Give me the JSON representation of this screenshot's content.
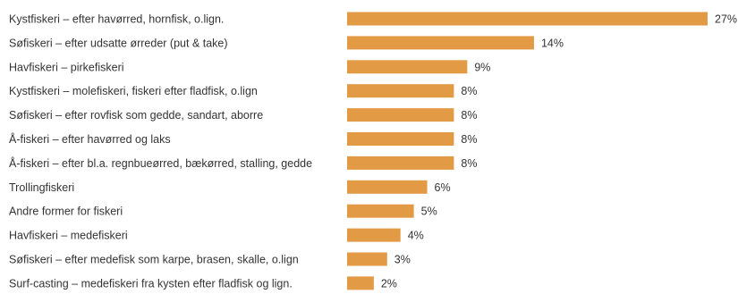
{
  "chart_data": {
    "type": "bar",
    "orientation": "horizontal",
    "categories": [
      "Kystfiskeri – efter havørred, hornfisk, o.lign.",
      "Søfiskeri – efter udsatte ørreder (put & take)",
      "Havfiskeri – pirkefiskeri",
      "Kystfiskeri – molefiskeri, fiskeri efter fladfisk, o.lign",
      "Søfiskeri – efter rovfisk som gedde, sandart, aborre",
      "Å-fiskeri – efter havørred og laks",
      "Å-fiskeri – efter bl.a.  regnbueørred, bækørred, stalling, gedde",
      "Trollingfiskeri",
      "Andre former for fiskeri",
      "Havfiskeri – medefiskeri",
      "Søfiskeri – efter medefisk som karpe, brasen, skalle, o.lign",
      "Surf-casting – medefiskeri fra kysten efter fladfisk og lign."
    ],
    "values": [
      27,
      14,
      9,
      8,
      8,
      8,
      8,
      6,
      5,
      4,
      3,
      2
    ],
    "value_labels": [
      "27%",
      "14%",
      "9%",
      "8%",
      "8%",
      "8%",
      "8%",
      "6%",
      "5%",
      "4%",
      "3%",
      "2%"
    ],
    "unit": "%",
    "bar_color": "#e39a44",
    "grid": false,
    "legend": "none"
  }
}
